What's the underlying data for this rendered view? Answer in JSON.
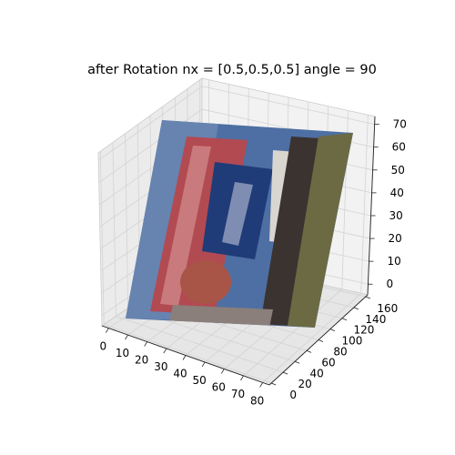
{
  "chart_data": {
    "type": "surface-3d",
    "title": "after Rotation nx = [0.5,0.5,0.5] angle = 90",
    "xlabel": "",
    "ylabel": "",
    "zlabel": "",
    "x_ticks": [
      "0",
      "10",
      "20",
      "30",
      "40",
      "50",
      "60",
      "70",
      "80"
    ],
    "y_ticks": [
      "0",
      "20",
      "40",
      "60",
      "80",
      "100",
      "120",
      "140",
      "160"
    ],
    "z_ticks": [
      "0",
      "10",
      "20",
      "30",
      "40",
      "50",
      "60",
      "70"
    ],
    "xlim": [
      0,
      80
    ],
    "ylim": [
      0,
      160
    ],
    "zlim": [
      0,
      75
    ],
    "grid": true,
    "surface": "rotated image texture",
    "colors": {
      "pane": "#f2f2f2",
      "pane_side": "#e6e6e6",
      "grid": "#d6d6d6",
      "texture_sky": "#4e6fa3",
      "texture_red": "#b0404a",
      "texture_blue_sign": "#1f3c78",
      "texture_dark": "#3b3330",
      "texture_olive": "#6b6a43"
    }
  }
}
